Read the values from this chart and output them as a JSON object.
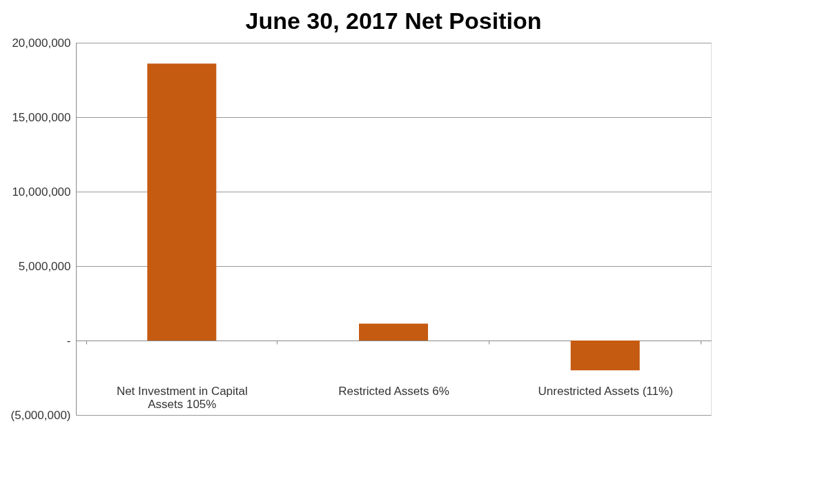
{
  "chart_data": {
    "type": "bar",
    "title": "June 30, 2017 Net Position",
    "categories": [
      "Net Investment in Capital Assets 105%",
      "Restricted Assets 6%",
      "Unrestricted Assets (11%)"
    ],
    "values": [
      18600000,
      1130000,
      -2000000
    ],
    "color": "#c55a11",
    "ylim": [
      -5000000,
      20000000
    ],
    "yticks": [
      {
        "value": -5000000,
        "label": "(5,000,000)"
      },
      {
        "value": 0,
        "label": "-"
      },
      {
        "value": 5000000,
        "label": "5,000,000"
      },
      {
        "value": 10000000,
        "label": "10,000,000"
      },
      {
        "value": 15000000,
        "label": "15,000,000"
      },
      {
        "value": 20000000,
        "label": "20,000,000"
      }
    ],
    "grid": "y"
  }
}
